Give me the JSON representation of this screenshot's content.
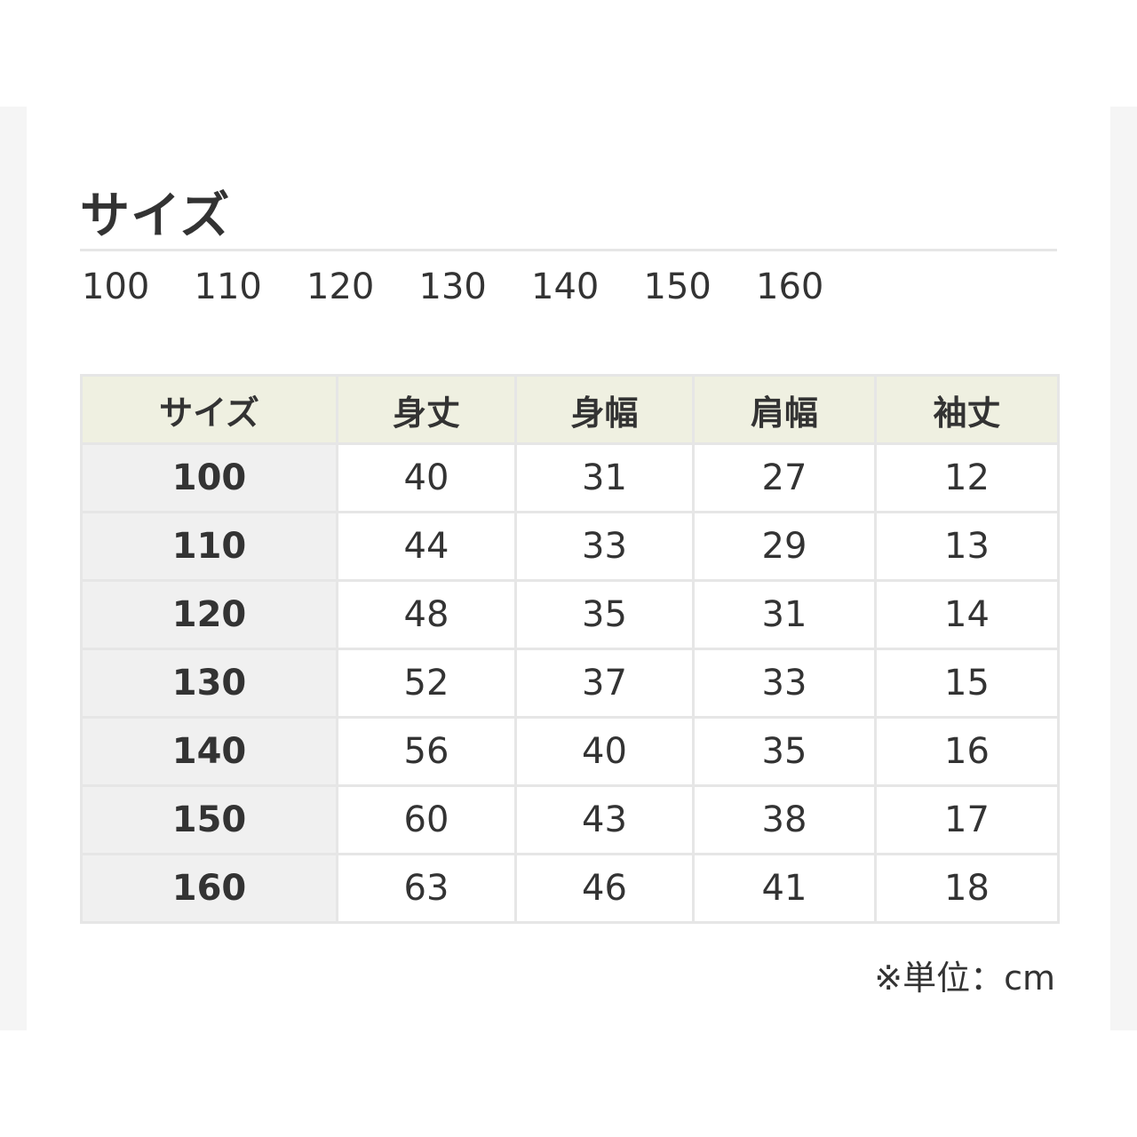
{
  "title": "サイズ",
  "sizes": [
    "100",
    "110",
    "120",
    "130",
    "140",
    "150",
    "160"
  ],
  "table": {
    "headers": [
      "サイズ",
      "身丈",
      "身幅",
      "肩幅",
      "袖丈"
    ],
    "rows": [
      [
        "100",
        "40",
        "31",
        "27",
        "12"
      ],
      [
        "110",
        "44",
        "33",
        "29",
        "13"
      ],
      [
        "120",
        "48",
        "35",
        "31",
        "14"
      ],
      [
        "130",
        "52",
        "37",
        "33",
        "15"
      ],
      [
        "140",
        "56",
        "40",
        "35",
        "16"
      ],
      [
        "150",
        "60",
        "43",
        "38",
        "17"
      ],
      [
        "160",
        "63",
        "46",
        "41",
        "18"
      ]
    ]
  },
  "unit_note": "※単位：cm",
  "colors": {
    "header_bg": "#eff0e1",
    "size_col_bg": "#f0f0f0",
    "border": "#e6e6e6"
  }
}
